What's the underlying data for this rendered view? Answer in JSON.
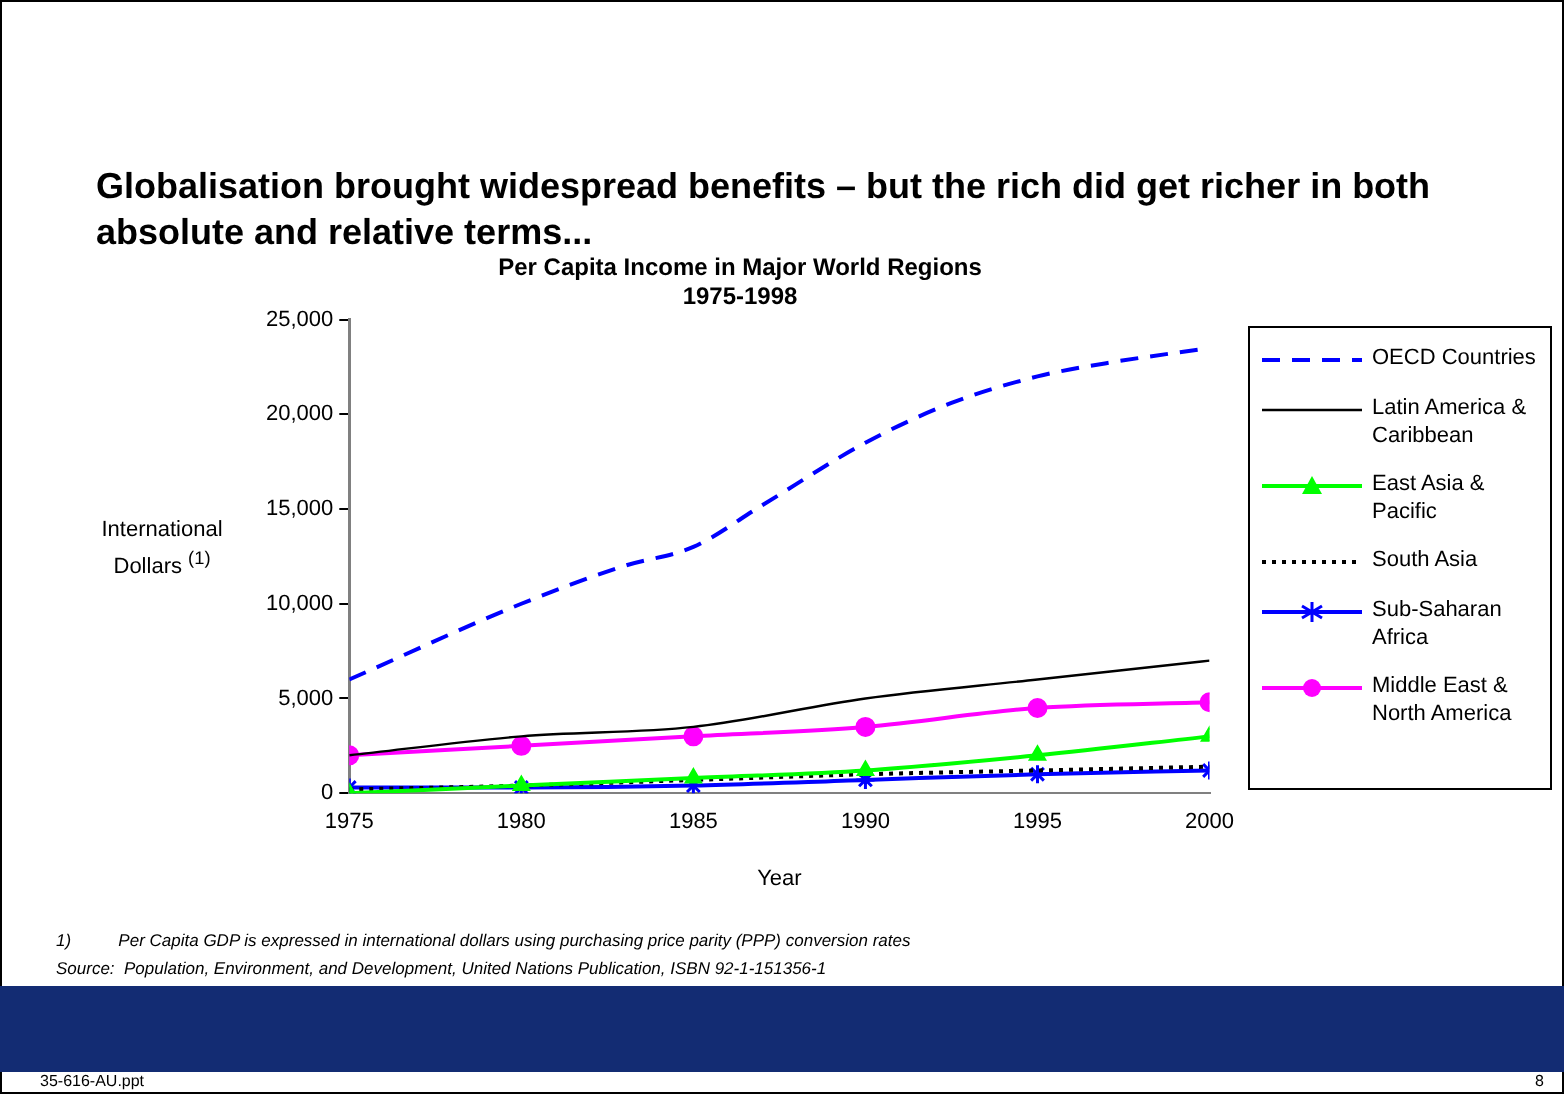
{
  "chart_data": {
    "type": "line",
    "title": "Globalisation brought widespread benefits – but the rich did get richer in both absolute and relative terms...",
    "subtitle": "Per Capita Income in Major World Regions\n1975-1998",
    "xlabel": "Year",
    "ylabel": "International Dollars $^{(1)}$",
    "xlim": [
      1975,
      2000
    ],
    "xticks": [
      1975,
      1980,
      1985,
      1990,
      1995,
      2000
    ],
    "ylim": [
      0,
      25000
    ],
    "yticks": [
      {
        "value": 0,
        "label": "0"
      },
      {
        "value": 5000,
        "label": "5,000"
      },
      {
        "value": 10000,
        "label": "10,000"
      },
      {
        "value": 15000,
        "label": "15,000"
      },
      {
        "value": 20000,
        "label": "20,000"
      },
      {
        "value": 25000,
        "label": "25,000"
      }
    ],
    "grid": false,
    "legend": "right",
    "series": [
      {
        "name": "OECD Countries",
        "color": "#0000ff",
        "line_style": "dashed",
        "marker": "none",
        "x": [
          1975,
          1980,
          1983,
          1985,
          1987,
          1990,
          1992.5,
          1995,
          1997,
          2000
        ],
        "values": [
          6000,
          10000,
          12000,
          13000,
          15200,
          18500,
          20600,
          22000,
          22700,
          23500
        ]
      },
      {
        "name": "Latin America & Caribbean",
        "color": "#000000",
        "line_style": "solid",
        "marker": "none",
        "x": [
          1975,
          1980,
          1985,
          1990,
          1995,
          2000
        ],
        "values": [
          2000,
          3000,
          3500,
          5000,
          6000,
          7000
        ]
      },
      {
        "name": "East Asia & Pacific",
        "color": "#00ff00",
        "line_style": "solid",
        "marker": "triangle",
        "x": [
          1975,
          1980,
          1985,
          1990,
          1995,
          2000
        ],
        "values": [
          0,
          400,
          800,
          1200,
          2000,
          3000
        ]
      },
      {
        "name": "South Asia",
        "color": "#000000",
        "line_style": "dotted",
        "marker": "none",
        "x": [
          1975,
          1980,
          1985,
          1990,
          1995,
          2000
        ],
        "values": [
          200,
          400,
          700,
          1000,
          1200,
          1400
        ]
      },
      {
        "name": "Sub-Saharan Africa",
        "color": "#0000ff",
        "line_style": "solid",
        "marker": "cross",
        "x": [
          1975,
          1980,
          1985,
          1990,
          1995,
          2000
        ],
        "values": [
          300,
          300,
          400,
          700,
          1000,
          1200
        ]
      },
      {
        "name": "Middle East & North America",
        "color": "#ff00ff",
        "line_style": "solid",
        "marker": "circle",
        "x": [
          1975,
          1980,
          1985,
          1990,
          1995,
          2000
        ],
        "values": [
          2000,
          2500,
          3000,
          3500,
          4500,
          4800
        ]
      }
    ],
    "annotations": [
      "1)          Per Capita GDP is expressed in international dollars using purchasing price parity (PPP) conversion rates",
      "Source:  Population, Environment, and Development, United Nations Publication, ISBN 92-1-151356-1",
      "35-616-AU.ppt",
      "8"
    ]
  }
}
